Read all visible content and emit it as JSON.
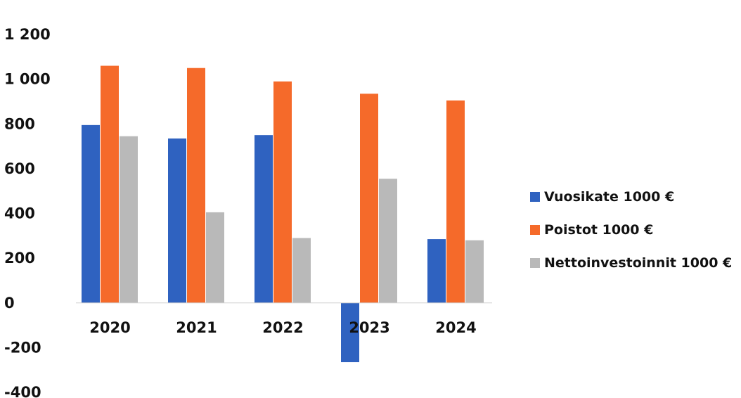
{
  "chart_data": {
    "type": "bar",
    "categories": [
      "2020",
      "2021",
      "2022",
      "2023",
      "2024"
    ],
    "series": [
      {
        "name": "Vuosikate 1000 €",
        "color": "#2f62c0",
        "values": [
          795,
          735,
          750,
          -265,
          285
        ]
      },
      {
        "name": "Poistot 1000 €",
        "color": "#f56a2a",
        "values": [
          1060,
          1050,
          990,
          935,
          905
        ]
      },
      {
        "name": "Nettoinvestoinnit 1000 €",
        "color": "#b9b9b9",
        "values": [
          745,
          405,
          290,
          555,
          280
        ]
      }
    ],
    "ylim": [
      -400,
      1200
    ],
    "yticks": [
      -400,
      -200,
      0,
      200,
      400,
      600,
      800,
      1000,
      1200
    ],
    "ytick_labels": [
      "-400",
      "-200",
      "0",
      "200",
      "400",
      "600",
      "800",
      "1 000",
      "1 200"
    ],
    "legend_position": "right",
    "grid": false
  }
}
